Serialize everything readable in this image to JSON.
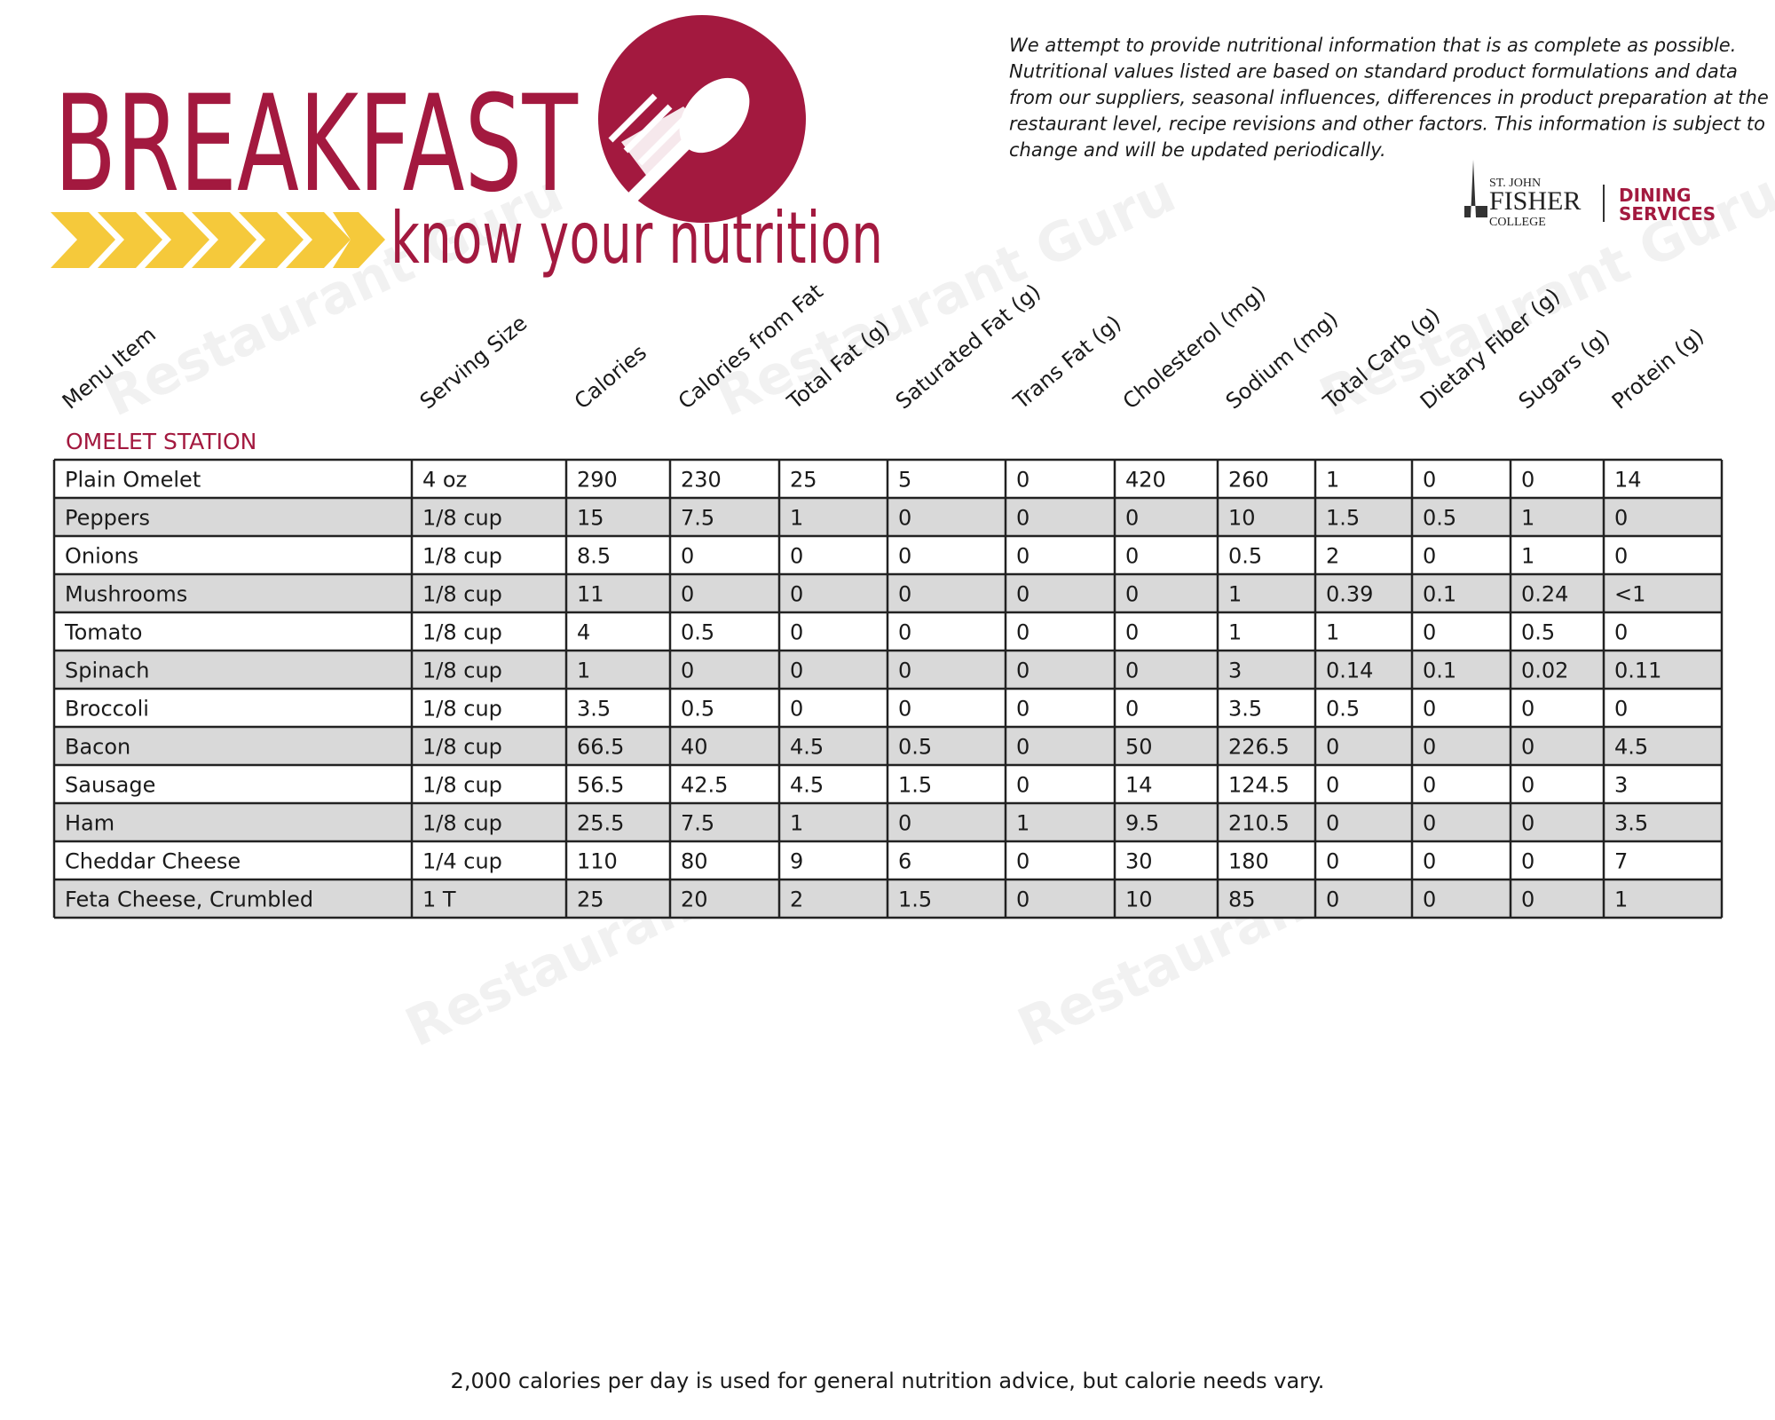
{
  "header": {
    "title": "BREAKFAST",
    "subtitle": "know your nutrition",
    "disclaimer": [
      "We attempt to provide nutritional information that is as complete as possible.",
      "Nutritional values listed are based on standard product formulations and data",
      "from our suppliers, seasonal influences, differences in product preparation at the",
      "restaurant level, recipe revisions and other factors. This information is subject to",
      "change and will be updated periodically."
    ],
    "logo": {
      "college_top": "ST. JOHN",
      "college_name": "FISHER",
      "college_bottom": "COLLEGE",
      "dept_top": "DINING",
      "dept_bottom": "SERVICES"
    }
  },
  "watermark": "Restaurant Guru",
  "table": {
    "columns": [
      "Menu Item",
      "Serving Size",
      "Calories",
      "Calories from Fat",
      "Total Fat (g)",
      "Saturated Fat (g)",
      "Trans Fat (g)",
      "Cholesterol (mg)",
      "Sodium (mg)",
      "Total Carb (g)",
      "Dietary Fiber (g)",
      "Sugars (g)",
      "Protein (g)"
    ],
    "section": "OMELET STATION",
    "rows": [
      [
        "Plain Omelet",
        "4 oz",
        "290",
        "230",
        "25",
        "5",
        "0",
        "420",
        "260",
        "1",
        "0",
        "0",
        "14"
      ],
      [
        "Peppers",
        "1/8 cup",
        "15",
        "7.5",
        "1",
        "0",
        "0",
        "0",
        "10",
        "1.5",
        "0.5",
        "1",
        "0"
      ],
      [
        "Onions",
        "1/8 cup",
        "8.5",
        "0",
        "0",
        "0",
        "0",
        "0",
        "0.5",
        "2",
        "0",
        "1",
        "0"
      ],
      [
        "Mushrooms",
        "1/8 cup",
        "11",
        "0",
        "0",
        "0",
        "0",
        "0",
        "1",
        "0.39",
        "0.1",
        "0.24",
        "<1"
      ],
      [
        "Tomato",
        "1/8 cup",
        "4",
        "0.5",
        "0",
        "0",
        "0",
        "0",
        "1",
        "1",
        "0",
        "0.5",
        "0"
      ],
      [
        "Spinach",
        "1/8 cup",
        "1",
        "0",
        "0",
        "0",
        "0",
        "0",
        "3",
        "0.14",
        "0.1",
        "0.02",
        "0.11"
      ],
      [
        "Broccoli",
        "1/8 cup",
        "3.5",
        "0.5",
        "0",
        "0",
        "0",
        "0",
        "3.5",
        "0.5",
        "0",
        "0",
        "0"
      ],
      [
        "Bacon",
        "1/8 cup",
        "66.5",
        "40",
        "4.5",
        "0.5",
        "0",
        "50",
        "226.5",
        "0",
        "0",
        "0",
        "4.5"
      ],
      [
        "Sausage",
        "1/8 cup",
        "56.5",
        "42.5",
        "4.5",
        "1.5",
        "0",
        "14",
        "124.5",
        "0",
        "0",
        "0",
        "3"
      ],
      [
        "Ham",
        "1/8 cup",
        "25.5",
        "7.5",
        "1",
        "0",
        "1",
        "9.5",
        "210.5",
        "0",
        "0",
        "0",
        "3.5"
      ],
      [
        "Cheddar Cheese",
        "1/4 cup",
        "110",
        "80",
        "9",
        "6",
        "0",
        "30",
        "180",
        "0",
        "0",
        "0",
        "7"
      ],
      [
        "Feta Cheese, Crumbled",
        "1 T",
        "25",
        "20",
        "2",
        "1.5",
        "0",
        "10",
        "85",
        "0",
        "0",
        "0",
        "1"
      ]
    ]
  },
  "footer": "2,000 calories per day is used for general nutrition advice, but calorie needs vary."
}
